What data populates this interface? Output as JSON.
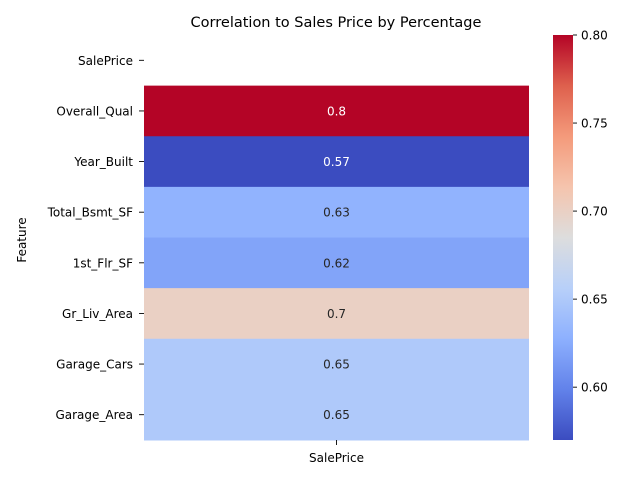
{
  "chart_data": {
    "type": "heatmap",
    "title": "Correlation to Sales Price by Percentage",
    "ylabel": "Feature",
    "xlabel": "",
    "columns": [
      "SalePrice"
    ],
    "rows": [
      "SalePrice",
      "Overall_Qual",
      "Year_Built",
      "Total_Bsmt_SF",
      "1st_Flr_SF",
      "Gr_Liv_Area",
      "Garage_Cars",
      "Garage_Area"
    ],
    "values": [
      null,
      0.8,
      0.57,
      0.63,
      0.62,
      0.7,
      0.65,
      0.65
    ],
    "value_labels": [
      "",
      "0.8",
      "0.57",
      "0.63",
      "0.62",
      "0.7",
      "0.65",
      "0.65"
    ],
    "colormap": "coolwarm",
    "vmin": 0.57,
    "vmax": 0.8,
    "colorbar_ticks": [
      "0.60",
      "0.65",
      "0.70",
      "0.75",
      "0.80"
    ]
  }
}
